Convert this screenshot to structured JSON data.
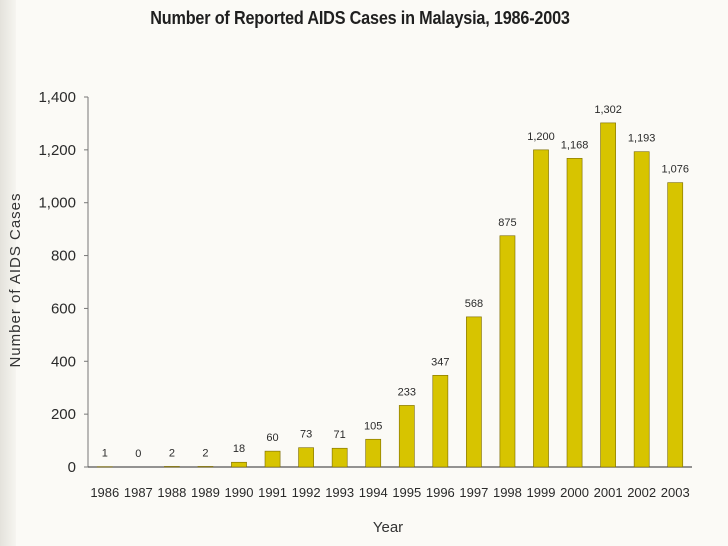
{
  "chart_data": {
    "type": "bar",
    "title": "Number of Reported AIDS Cases in Malaysia, 1986-2003",
    "xlabel": "Year",
    "ylabel": "Number of AIDS Cases",
    "ylim": [
      0,
      1400
    ],
    "yticks": [
      "0",
      "200",
      "400",
      "600",
      "800",
      "1,000",
      "1,200",
      "1,400"
    ],
    "grid": false,
    "legend": "none",
    "bar_color": "#d7c400",
    "bar_edge_color": "#7a6a00",
    "categories": [
      "1986",
      "1987",
      "1988",
      "1989",
      "1990",
      "1991",
      "1992",
      "1993",
      "1994",
      "1995",
      "1996",
      "1997",
      "1998",
      "1999",
      "2000",
      "2001",
      "2002",
      "2003"
    ],
    "values": [
      1,
      0,
      2,
      2,
      18,
      60,
      73,
      71,
      105,
      233,
      347,
      568,
      875,
      1200,
      1168,
      1302,
      1193,
      1076
    ],
    "value_labels": [
      "1",
      "0",
      "2",
      "2",
      "18",
      "60",
      "73",
      "71",
      "105",
      "233",
      "347",
      "568",
      "875",
      "1,200",
      "1,168",
      "1,302",
      "1,193",
      "1,076"
    ]
  }
}
